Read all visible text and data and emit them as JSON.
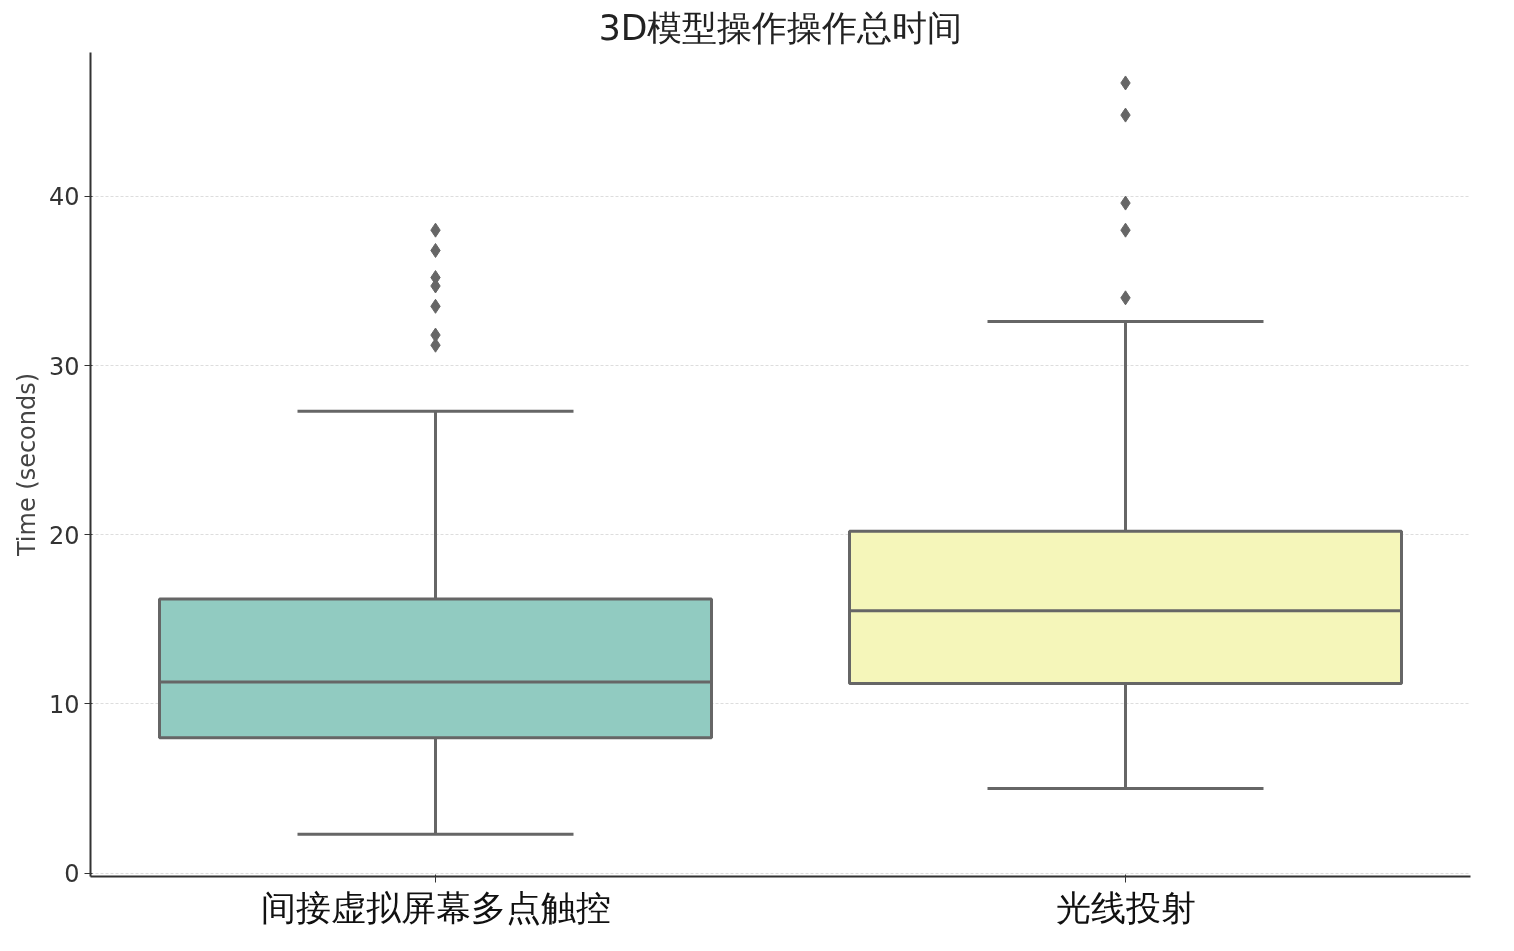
{
  "chart_data": {
    "type": "box",
    "title": "3D模型操作操作总时间",
    "ylabel": "Time (seconds)",
    "categories": [
      "间接虚拟屏幕多点触控",
      "光线投射"
    ],
    "colors": [
      "#91cbc1",
      "#f5f6ba"
    ],
    "boxes": [
      {
        "low": 2.3,
        "q1": 8.0,
        "median": 11.3,
        "q3": 16.2,
        "high": 27.3,
        "outliers": [
          38.0,
          36.8,
          35.2,
          34.7,
          33.5,
          31.8,
          31.2
        ]
      },
      {
        "low": 5.0,
        "q1": 11.2,
        "median": 15.5,
        "q3": 20.2,
        "high": 32.6,
        "outliers": [
          46.7,
          44.8,
          39.6,
          38.0,
          34.0
        ]
      }
    ],
    "ylim": [
      -0.2,
      48.5
    ],
    "yticks": [
      0,
      10,
      20,
      30,
      40
    ],
    "grid": "y",
    "marker": "diamond"
  }
}
